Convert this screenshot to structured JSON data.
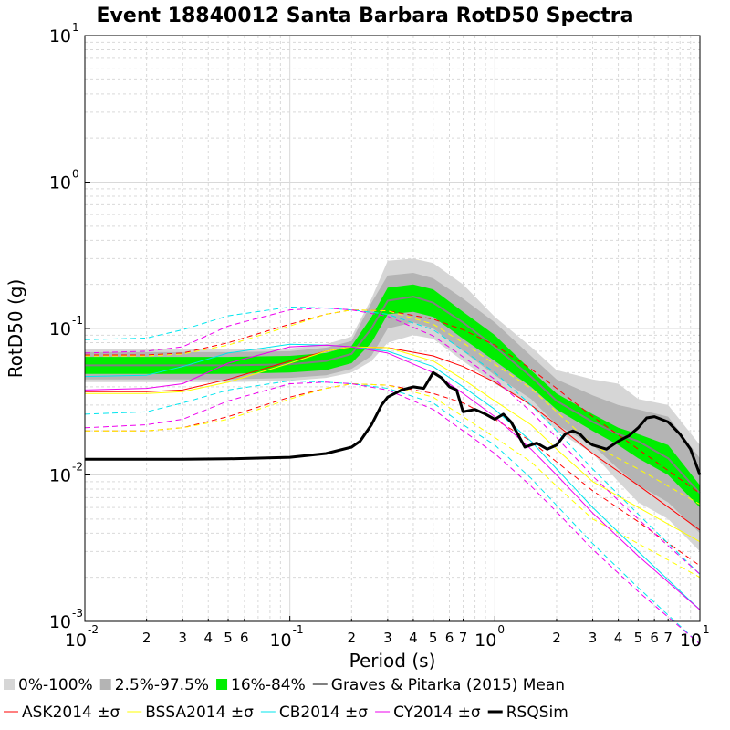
{
  "chart_data": {
    "type": "line",
    "title": "Event 18840012 Santa Barbara RotD50 Spectra",
    "xlabel": "Period (s)",
    "ylabel": "RotD50 (g)",
    "x_scale": "log",
    "y_scale": "log",
    "xlim": [
      0.01,
      10
    ],
    "ylim": [
      0.001,
      10
    ],
    "grid": true,
    "legend_position": "bottom",
    "x_ticks_major": [
      {
        "base": "10",
        "exp": "-2",
        "value": 0.01
      },
      {
        "base": "10",
        "exp": "-1",
        "value": 0.1
      },
      {
        "base": "10",
        "exp": "0",
        "value": 1
      },
      {
        "base": "10",
        "exp": "1",
        "value": 10
      }
    ],
    "x_ticks_minor": [
      {
        "label": "2",
        "value": 0.02
      },
      {
        "label": "3",
        "value": 0.03
      },
      {
        "label": "4",
        "value": 0.04
      },
      {
        "label": "5",
        "value": 0.05
      },
      {
        "label": "6",
        "value": 0.06
      },
      {
        "label": "2",
        "value": 0.2
      },
      {
        "label": "3",
        "value": 0.3
      },
      {
        "label": "4",
        "value": 0.4
      },
      {
        "label": "5",
        "value": 0.5
      },
      {
        "label": "6",
        "value": 0.6
      },
      {
        "label": "7",
        "value": 0.7
      },
      {
        "label": "2",
        "value": 2
      },
      {
        "label": "3",
        "value": 3
      },
      {
        "label": "4",
        "value": 4
      },
      {
        "label": "5",
        "value": 5
      },
      {
        "label": "6",
        "value": 6
      },
      {
        "label": "7",
        "value": 7
      }
    ],
    "y_ticks_major": [
      {
        "base": "10",
        "exp": "-3",
        "value": 0.001
      },
      {
        "base": "10",
        "exp": "-2",
        "value": 0.01
      },
      {
        "base": "10",
        "exp": "-1",
        "value": 0.1
      },
      {
        "base": "10",
        "exp": "0",
        "value": 1
      },
      {
        "base": "10",
        "exp": "1",
        "value": 10
      }
    ],
    "bands": [
      {
        "name": "0%-100%",
        "color": "#d6d6d6",
        "x": [
          0.01,
          0.02,
          0.05,
          0.1,
          0.15,
          0.2,
          0.25,
          0.3,
          0.4,
          0.5,
          0.7,
          1,
          1.5,
          2,
          3,
          4,
          5,
          7,
          10
        ],
        "upper": [
          0.072,
          0.072,
          0.072,
          0.073,
          0.078,
          0.088,
          0.16,
          0.29,
          0.3,
          0.28,
          0.2,
          0.12,
          0.075,
          0.052,
          0.045,
          0.042,
          0.033,
          0.03,
          0.016
        ],
        "lower": [
          0.043,
          0.043,
          0.043,
          0.044,
          0.046,
          0.05,
          0.06,
          0.08,
          0.09,
          0.085,
          0.06,
          0.042,
          0.03,
          0.02,
          0.014,
          0.009,
          0.0065,
          0.005,
          0.003
        ]
      },
      {
        "name": "2.5%-97.5%",
        "color": "#b4b4b4",
        "x": [
          0.01,
          0.02,
          0.05,
          0.1,
          0.15,
          0.2,
          0.25,
          0.3,
          0.4,
          0.5,
          0.7,
          1,
          1.5,
          2,
          3,
          4,
          5,
          7,
          10
        ],
        "upper": [
          0.069,
          0.069,
          0.069,
          0.07,
          0.074,
          0.082,
          0.15,
          0.23,
          0.24,
          0.22,
          0.16,
          0.11,
          0.065,
          0.045,
          0.035,
          0.03,
          0.028,
          0.025,
          0.013
        ],
        "lower": [
          0.045,
          0.045,
          0.045,
          0.046,
          0.048,
          0.053,
          0.065,
          0.1,
          0.11,
          0.1,
          0.07,
          0.048,
          0.033,
          0.022,
          0.016,
          0.011,
          0.0085,
          0.0065,
          0.004
        ]
      },
      {
        "name": "16%-84%",
        "color": "#00ee00",
        "x": [
          0.01,
          0.02,
          0.05,
          0.1,
          0.15,
          0.2,
          0.25,
          0.3,
          0.4,
          0.5,
          0.7,
          1,
          1.5,
          2,
          3,
          4,
          5,
          7,
          10
        ],
        "upper": [
          0.064,
          0.064,
          0.064,
          0.065,
          0.068,
          0.076,
          0.12,
          0.19,
          0.2,
          0.185,
          0.13,
          0.09,
          0.052,
          0.036,
          0.026,
          0.021,
          0.019,
          0.016,
          0.0085
        ],
        "lower": [
          0.049,
          0.049,
          0.049,
          0.05,
          0.052,
          0.058,
          0.08,
          0.125,
          0.13,
          0.12,
          0.085,
          0.06,
          0.04,
          0.028,
          0.02,
          0.016,
          0.013,
          0.01,
          0.006
        ]
      }
    ],
    "series": [
      {
        "name": "Graves & Pitarka (2015) Mean",
        "color": "#808080",
        "width": 2,
        "dash": "",
        "x": [
          0.01,
          0.02,
          0.05,
          0.1,
          0.15,
          0.2,
          0.25,
          0.3,
          0.4,
          0.5,
          0.7,
          1,
          1.5,
          2,
          3,
          4,
          5,
          7,
          10
        ],
        "y": [
          0.056,
          0.056,
          0.056,
          0.057,
          0.06,
          0.067,
          0.1,
          0.155,
          0.165,
          0.15,
          0.11,
          0.075,
          0.047,
          0.032,
          0.023,
          0.019,
          0.017,
          0.013,
          0.0075
        ]
      },
      {
        "name": "ASK2014 ±σ",
        "color": "#ff0000",
        "width": 1,
        "dash": "",
        "x": [
          0.01,
          0.02,
          0.03,
          0.05,
          0.1,
          0.15,
          0.2,
          0.3,
          0.5,
          0.7,
          1,
          1.5,
          2,
          3,
          5,
          10
        ],
        "y": [
          0.037,
          0.037,
          0.038,
          0.045,
          0.06,
          0.07,
          0.075,
          0.074,
          0.065,
          0.055,
          0.043,
          0.03,
          0.022,
          0.014,
          0.0085,
          0.0042
        ]
      },
      {
        "name": "ASK2014 +σ",
        "color": "#ff0000",
        "width": 1,
        "dash": "6,4",
        "x": [
          0.01,
          0.02,
          0.03,
          0.05,
          0.1,
          0.15,
          0.2,
          0.3,
          0.5,
          0.7,
          1,
          1.5,
          2,
          3,
          5,
          10
        ],
        "y": [
          0.066,
          0.066,
          0.068,
          0.08,
          0.107,
          0.125,
          0.134,
          0.132,
          0.116,
          0.098,
          0.077,
          0.053,
          0.039,
          0.025,
          0.015,
          0.0075
        ]
      },
      {
        "name": "ASK2014 -σ",
        "color": "#ff0000",
        "width": 1,
        "dash": "6,4",
        "x": [
          0.01,
          0.02,
          0.03,
          0.05,
          0.1,
          0.15,
          0.2,
          0.3,
          0.5,
          0.7,
          1,
          1.5,
          2,
          3,
          5,
          10
        ],
        "y": [
          0.02,
          0.02,
          0.021,
          0.025,
          0.034,
          0.039,
          0.042,
          0.041,
          0.036,
          0.031,
          0.024,
          0.017,
          0.0123,
          0.0078,
          0.0048,
          0.0024
        ]
      },
      {
        "name": "BSSA2014 ±σ",
        "color": "#ffff00",
        "width": 1,
        "dash": "",
        "x": [
          0.01,
          0.02,
          0.03,
          0.05,
          0.1,
          0.15,
          0.2,
          0.3,
          0.5,
          0.7,
          1,
          1.5,
          2,
          3,
          5,
          10
        ],
        "y": [
          0.036,
          0.036,
          0.037,
          0.043,
          0.058,
          0.07,
          0.075,
          0.074,
          0.06,
          0.045,
          0.032,
          0.022,
          0.015,
          0.009,
          0.006,
          0.0035
        ]
      },
      {
        "name": "BSSA2014 +σ",
        "color": "#ffff00",
        "width": 1,
        "dash": "6,4",
        "x": [
          0.01,
          0.02,
          0.03,
          0.05,
          0.1,
          0.15,
          0.2,
          0.3,
          0.5,
          0.7,
          1,
          1.5,
          2,
          3,
          5,
          10
        ],
        "y": [
          0.065,
          0.065,
          0.067,
          0.077,
          0.104,
          0.125,
          0.134,
          0.132,
          0.107,
          0.08,
          0.057,
          0.039,
          0.027,
          0.016,
          0.011,
          0.0063
        ]
      },
      {
        "name": "BSSA2014 -σ",
        "color": "#ffff00",
        "width": 1,
        "dash": "6,4",
        "x": [
          0.01,
          0.02,
          0.03,
          0.05,
          0.1,
          0.15,
          0.2,
          0.3,
          0.5,
          0.7,
          1,
          1.5,
          2,
          3,
          5,
          10
        ],
        "y": [
          0.02,
          0.02,
          0.021,
          0.024,
          0.033,
          0.039,
          0.042,
          0.041,
          0.034,
          0.025,
          0.018,
          0.0123,
          0.0084,
          0.005,
          0.0034,
          0.002
        ]
      },
      {
        "name": "CB2014 ±σ",
        "color": "#00e5ee",
        "width": 1,
        "dash": "",
        "x": [
          0.01,
          0.02,
          0.03,
          0.05,
          0.1,
          0.15,
          0.2,
          0.3,
          0.5,
          0.7,
          1,
          1.5,
          2,
          3,
          5,
          10
        ],
        "y": [
          0.047,
          0.048,
          0.055,
          0.068,
          0.078,
          0.077,
          0.075,
          0.07,
          0.055,
          0.04,
          0.028,
          0.017,
          0.011,
          0.006,
          0.003,
          0.0012
        ]
      },
      {
        "name": "CB2014 +σ",
        "color": "#00e5ee",
        "width": 1,
        "dash": "6,4",
        "x": [
          0.01,
          0.02,
          0.03,
          0.05,
          0.1,
          0.15,
          0.2,
          0.3,
          0.5,
          0.7,
          1,
          1.5,
          2,
          3,
          5,
          10
        ],
        "y": [
          0.084,
          0.086,
          0.098,
          0.122,
          0.14,
          0.138,
          0.134,
          0.125,
          0.098,
          0.071,
          0.05,
          0.03,
          0.02,
          0.011,
          0.0054,
          0.0021
        ]
      },
      {
        "name": "CB2014 -σ",
        "color": "#00e5ee",
        "width": 1,
        "dash": "6,4",
        "x": [
          0.01,
          0.02,
          0.03,
          0.05,
          0.1,
          0.15,
          0.2,
          0.3,
          0.5,
          0.7,
          1,
          1.5,
          2,
          3,
          5,
          10
        ],
        "y": [
          0.026,
          0.027,
          0.031,
          0.038,
          0.044,
          0.043,
          0.042,
          0.039,
          0.031,
          0.022,
          0.016,
          0.0095,
          0.0062,
          0.0034,
          0.0017,
          0.0007
        ]
      },
      {
        "name": "CY2014 ±σ",
        "color": "#ee00ee",
        "width": 1,
        "dash": "",
        "x": [
          0.01,
          0.02,
          0.03,
          0.05,
          0.1,
          0.15,
          0.2,
          0.3,
          0.5,
          0.7,
          1,
          1.5,
          2,
          3,
          5,
          10
        ],
        "y": [
          0.038,
          0.039,
          0.042,
          0.058,
          0.075,
          0.077,
          0.075,
          0.068,
          0.05,
          0.036,
          0.025,
          0.015,
          0.01,
          0.0055,
          0.0028,
          0.0012
        ]
      },
      {
        "name": "CY2014 +σ",
        "color": "#ee00ee",
        "width": 1,
        "dash": "6,4",
        "x": [
          0.01,
          0.02,
          0.03,
          0.05,
          0.1,
          0.15,
          0.2,
          0.3,
          0.5,
          0.7,
          1,
          1.5,
          2,
          3,
          5,
          10
        ],
        "y": [
          0.068,
          0.07,
          0.075,
          0.104,
          0.134,
          0.138,
          0.134,
          0.121,
          0.089,
          0.064,
          0.045,
          0.027,
          0.018,
          0.0098,
          0.005,
          0.0021
        ]
      },
      {
        "name": "CY2014 -σ",
        "color": "#ee00ee",
        "width": 1,
        "dash": "6,4",
        "x": [
          0.01,
          0.02,
          0.03,
          0.05,
          0.1,
          0.15,
          0.2,
          0.3,
          0.5,
          0.7,
          1,
          1.5,
          2,
          3,
          5,
          10
        ],
        "y": [
          0.021,
          0.022,
          0.024,
          0.032,
          0.042,
          0.043,
          0.042,
          0.038,
          0.028,
          0.02,
          0.014,
          0.0084,
          0.0056,
          0.0031,
          0.0016,
          0.0007
        ]
      },
      {
        "name": "RSQSim",
        "color": "#000000",
        "width": 3,
        "dash": "",
        "x": [
          0.01,
          0.03,
          0.05,
          0.1,
          0.15,
          0.2,
          0.22,
          0.25,
          0.28,
          0.3,
          0.35,
          0.4,
          0.45,
          0.5,
          0.55,
          0.6,
          0.65,
          0.7,
          0.8,
          0.9,
          1.0,
          1.1,
          1.2,
          1.4,
          1.6,
          1.8,
          2.0,
          2.2,
          2.4,
          2.6,
          2.8,
          3.0,
          3.5,
          4.0,
          4.5,
          5.0,
          5.5,
          6.0,
          7.0,
          8.0,
          9.0,
          10.0
        ],
        "y": [
          0.0128,
          0.0128,
          0.0129,
          0.0132,
          0.014,
          0.0155,
          0.017,
          0.022,
          0.03,
          0.034,
          0.038,
          0.04,
          0.039,
          0.05,
          0.046,
          0.04,
          0.038,
          0.027,
          0.028,
          0.026,
          0.024,
          0.026,
          0.023,
          0.0155,
          0.0165,
          0.015,
          0.016,
          0.019,
          0.02,
          0.019,
          0.017,
          0.016,
          0.015,
          0.017,
          0.0185,
          0.021,
          0.0245,
          0.025,
          0.023,
          0.019,
          0.015,
          0.01
        ]
      }
    ],
    "legend_rows": [
      [
        {
          "label": "0%-100%",
          "color": "#d6d6d6",
          "kind": "box"
        },
        {
          "label": "2.5%-97.5%",
          "color": "#b4b4b4",
          "kind": "box"
        },
        {
          "label": "16%-84%",
          "color": "#00ee00",
          "kind": "box"
        },
        {
          "label": "Graves & Pitarka (2015) Mean",
          "color": "#808080",
          "kind": "line",
          "width": 2
        }
      ],
      [
        {
          "label": "ASK2014 ±σ",
          "color": "#ff0000",
          "kind": "line",
          "width": 1
        },
        {
          "label": "BSSA2014 ±σ",
          "color": "#ffff00",
          "kind": "line",
          "width": 1
        },
        {
          "label": "CB2014 ±σ",
          "color": "#00e5ee",
          "kind": "line",
          "width": 1
        },
        {
          "label": "CY2014 ±σ",
          "color": "#ee00ee",
          "kind": "line",
          "width": 1
        },
        {
          "label": "RSQSim",
          "color": "#000000",
          "kind": "line",
          "width": 3
        }
      ]
    ]
  }
}
